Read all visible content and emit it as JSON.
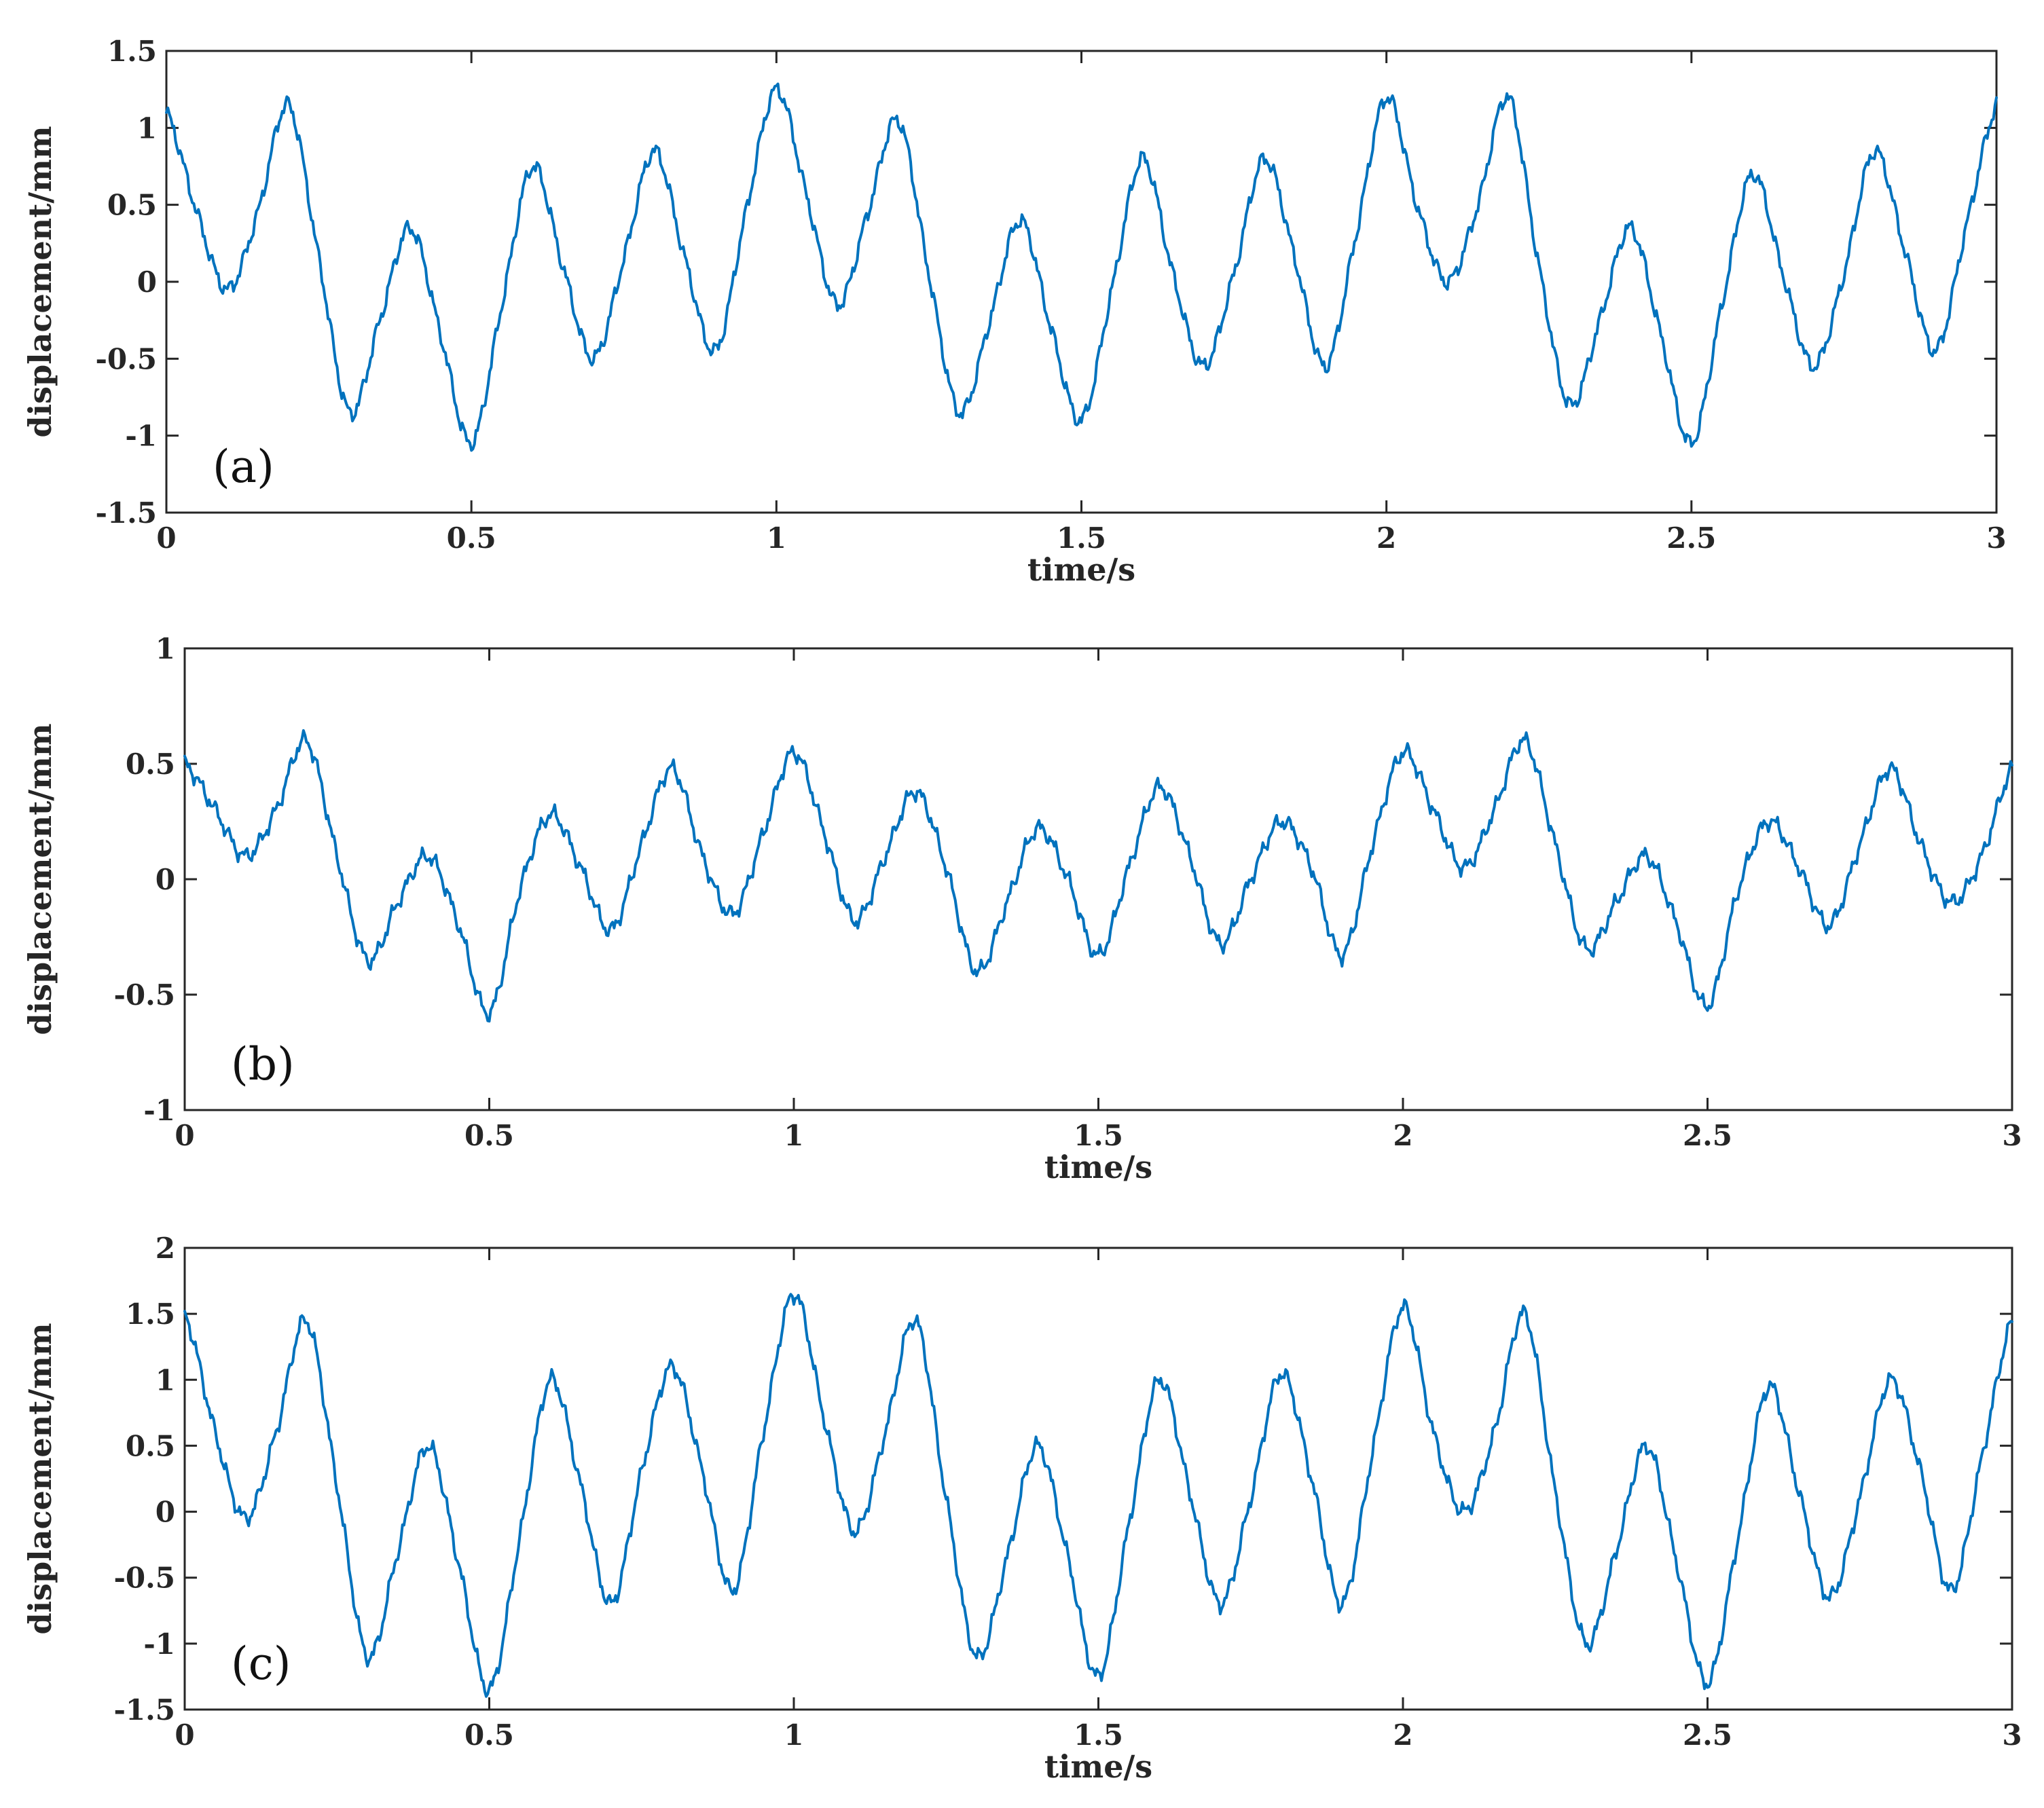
{
  "chart_data": [
    {
      "type": "line",
      "panel_label": "(a)",
      "xlabel": "time/s",
      "ylabel": "displacement/mm",
      "xlim": [
        0,
        3
      ],
      "ylim": [
        -1.5,
        1.5
      ],
      "xticks": [
        "0",
        "0.5",
        "1",
        "1.5",
        "2",
        "2.5",
        "3"
      ],
      "yticks": [
        "-1.5",
        "-1",
        "-0.5",
        "0",
        "0.5",
        "1",
        "1.5"
      ],
      "grid": false,
      "color": "#0072BD",
      "x": [
        0,
        0.05,
        0.1,
        0.15,
        0.2,
        0.25,
        0.3,
        0.35,
        0.4,
        0.45,
        0.5,
        0.55,
        0.6,
        0.65,
        0.7,
        0.75,
        0.8,
        0.85,
        0.9,
        0.95,
        1.0,
        1.05,
        1.1,
        1.15,
        1.2,
        1.25,
        1.3,
        1.35,
        1.4,
        1.45,
        1.5,
        1.55,
        1.6,
        1.65,
        1.7,
        1.75,
        1.8,
        1.85,
        1.9,
        1.95,
        2.0,
        2.05,
        2.1,
        2.15,
        2.2,
        2.25,
        2.3,
        2.35,
        2.4,
        2.45,
        2.5,
        2.55,
        2.6,
        2.65,
        2.7,
        2.75,
        2.8,
        2.85,
        2.9,
        2.95,
        3.0
      ],
      "y": [
        1.1,
        0.45,
        -0.05,
        0.45,
        1.15,
        0.15,
        -0.85,
        -0.25,
        0.35,
        -0.35,
        -1.05,
        -0.15,
        0.75,
        0.1,
        -0.5,
        0.15,
        0.85,
        0.15,
        -0.45,
        0.45,
        1.25,
        0.55,
        -0.15,
        0.45,
        1.05,
        0.05,
        -0.85,
        -0.25,
        0.4,
        -0.3,
        -0.9,
        -0.05,
        0.8,
        0.05,
        -0.55,
        0.05,
        0.8,
        0.15,
        -0.55,
        0.3,
        1.2,
        0.5,
        0.0,
        0.5,
        1.2,
        0.1,
        -0.8,
        -0.25,
        0.35,
        -0.35,
        -1.05,
        -0.15,
        0.7,
        0.05,
        -0.55,
        0.05,
        0.85,
        0.2,
        -0.45,
        0.35,
        1.15
      ]
    },
    {
      "type": "line",
      "panel_label": "(b)",
      "xlabel": "time/s",
      "ylabel": "displacement/mm",
      "xlim": [
        0,
        3
      ],
      "ylim": [
        -1,
        1
      ],
      "xticks": [
        "0",
        "0.5",
        "1",
        "1.5",
        "2",
        "2.5",
        "3"
      ],
      "yticks": [
        "-1",
        "-0.5",
        "0",
        "0.5",
        "1"
      ],
      "grid": false,
      "color": "#0072BD",
      "x": [
        0,
        0.05,
        0.1,
        0.15,
        0.2,
        0.25,
        0.3,
        0.35,
        0.4,
        0.45,
        0.5,
        0.55,
        0.6,
        0.65,
        0.7,
        0.75,
        0.8,
        0.85,
        0.9,
        0.95,
        1.0,
        1.05,
        1.1,
        1.15,
        1.2,
        1.25,
        1.3,
        1.35,
        1.4,
        1.45,
        1.5,
        1.55,
        1.6,
        1.65,
        1.7,
        1.75,
        1.8,
        1.85,
        1.9,
        1.95,
        2.0,
        2.05,
        2.1,
        2.15,
        2.2,
        2.25,
        2.3,
        2.35,
        2.4,
        2.45,
        2.5,
        2.55,
        2.6,
        2.65,
        2.7,
        2.75,
        2.8,
        2.85,
        2.9,
        2.95,
        3.0
      ],
      "y": [
        0.5,
        0.3,
        0.1,
        0.3,
        0.6,
        0.1,
        -0.35,
        -0.1,
        0.1,
        -0.2,
        -0.58,
        -0.05,
        0.28,
        0.05,
        -0.22,
        0.15,
        0.48,
        0.1,
        -0.15,
        0.2,
        0.55,
        0.2,
        -0.18,
        0.1,
        0.38,
        0.05,
        -0.4,
        -0.1,
        0.22,
        0.0,
        -0.33,
        0.05,
        0.4,
        0.1,
        -0.28,
        0.0,
        0.25,
        0.05,
        -0.33,
        0.15,
        0.55,
        0.3,
        0.05,
        0.3,
        0.6,
        0.15,
        -0.3,
        -0.1,
        0.1,
        -0.2,
        -0.55,
        -0.05,
        0.25,
        0.05,
        -0.2,
        0.15,
        0.48,
        0.15,
        -0.1,
        0.1,
        0.48
      ]
    },
    {
      "type": "line",
      "panel_label": "(c)",
      "xlabel": "time/s",
      "ylabel": "displacement/mm",
      "xlim": [
        0,
        3
      ],
      "ylim": [
        -1.5,
        2
      ],
      "xticks": [
        "0",
        "0.5",
        "1",
        "1.5",
        "2",
        "2.5",
        "3"
      ],
      "yticks": [
        "-1.5",
        "-1",
        "-0.5",
        "0",
        "0.5",
        "1",
        "1.5",
        "2"
      ],
      "grid": false,
      "color": "#0072BD",
      "x": [
        0,
        0.05,
        0.1,
        0.15,
        0.2,
        0.25,
        0.3,
        0.35,
        0.4,
        0.45,
        0.5,
        0.55,
        0.6,
        0.65,
        0.7,
        0.75,
        0.8,
        0.85,
        0.9,
        0.95,
        1.0,
        1.05,
        1.1,
        1.15,
        1.2,
        1.25,
        1.3,
        1.35,
        1.4,
        1.45,
        1.5,
        1.55,
        1.6,
        1.65,
        1.7,
        1.75,
        1.8,
        1.85,
        1.9,
        1.95,
        2.0,
        2.05,
        2.1,
        2.15,
        2.2,
        2.25,
        2.3,
        2.35,
        2.4,
        2.45,
        2.5,
        2.55,
        2.6,
        2.65,
        2.7,
        2.75,
        2.8,
        2.85,
        2.9,
        2.95,
        3.0
      ],
      "y": [
        1.5,
        0.6,
        -0.05,
        0.6,
        1.45,
        0.2,
        -1.1,
        -0.3,
        0.5,
        -0.4,
        -1.35,
        -0.2,
        1.0,
        0.2,
        -0.7,
        0.3,
        1.1,
        0.3,
        -0.6,
        0.6,
        1.65,
        0.7,
        -0.15,
        0.6,
        1.45,
        0.1,
        -1.1,
        -0.35,
        0.5,
        -0.35,
        -1.25,
        -0.1,
        1.0,
        0.15,
        -0.7,
        0.1,
        1.05,
        0.25,
        -0.7,
        0.45,
        1.55,
        0.6,
        0.0,
        0.6,
        1.5,
        0.15,
        -1.0,
        -0.3,
        0.5,
        -0.4,
        -1.3,
        -0.2,
        0.95,
        0.15,
        -0.65,
        0.1,
        1.0,
        0.3,
        -0.6,
        0.4,
        1.45
      ]
    }
  ]
}
